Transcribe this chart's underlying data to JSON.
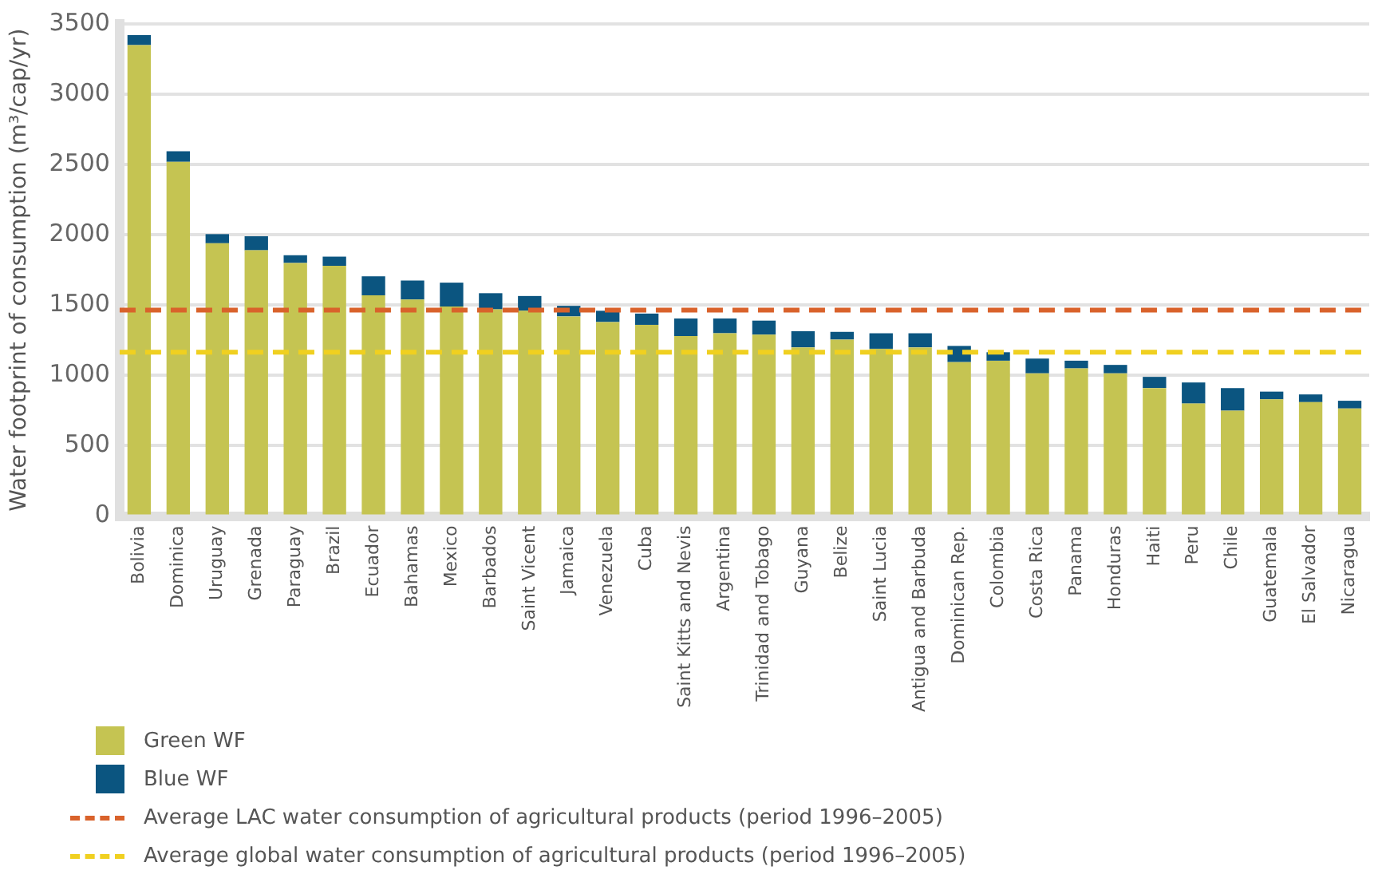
{
  "chart_data": {
    "type": "bar",
    "stacked": true,
    "ylabel": "Water footprint of consumption (m³/cap/yr)",
    "categories": [
      "Bolivia",
      "Dominica",
      "Uruguay",
      "Grenada",
      "Paraguay",
      "Brazil",
      "Ecuador",
      "Bahamas",
      "Mexico",
      "Barbados",
      "Saint Vicent",
      "Jamaica",
      "Venezuela",
      "Cuba",
      "Saint Kitts and Nevis",
      "Argentina",
      "Trinidad and Tobago",
      "Guyana",
      "Belize",
      "Saint Lucia",
      "Antigua and Barbuda",
      "Dominican Rep.",
      "Colombia",
      "Costa Rica",
      "Panama",
      "Honduras",
      "Haiti",
      "Peru",
      "Chile",
      "Guatemala",
      "El Salvador",
      "Nicaragua"
    ],
    "series": [
      {
        "name": "Green WF",
        "color": "#c5c452",
        "values": [
          3350,
          2520,
          1940,
          1890,
          1800,
          1780,
          1570,
          1540,
          1490,
          1470,
          1460,
          1420,
          1380,
          1360,
          1280,
          1300,
          1290,
          1200,
          1255,
          1190,
          1200,
          1095,
          1105,
          1015,
          1050,
          1015,
          910,
          800,
          750,
          830,
          810,
          765
        ]
      },
      {
        "name": "Blue WF",
        "color": "#0b5580",
        "values": [
          70,
          75,
          65,
          100,
          55,
          65,
          135,
          135,
          170,
          115,
          105,
          75,
          80,
          80,
          125,
          105,
          100,
          115,
          55,
          110,
          100,
          115,
          60,
          105,
          55,
          60,
          80,
          150,
          160,
          55,
          55,
          55
        ]
      }
    ],
    "ylim": [
      0,
      3500
    ],
    "yticks": [
      0,
      500,
      1000,
      1500,
      2000,
      2500,
      3000,
      3500
    ],
    "grid": "y",
    "legend": "bottom left",
    "ref_lines": [
      {
        "axis": "y",
        "value": 1465,
        "label": "Average LAC water consumption of agricultural products (period 1996–2005)",
        "color": "#d9622b",
        "line_style": "dashed"
      },
      {
        "axis": "y",
        "value": 1165,
        "label": "Average global water consumption of agricultural products (period 1996–2005)",
        "color": "#f0d020",
        "line_style": "dashed"
      }
    ]
  }
}
